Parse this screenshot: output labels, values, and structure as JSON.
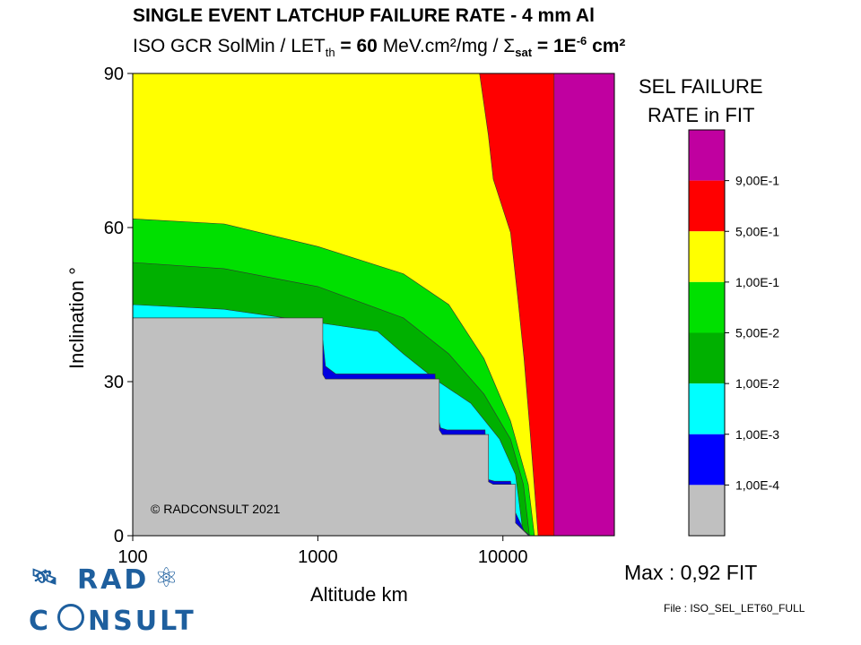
{
  "chart_data": {
    "type": "heatmap",
    "title": "SINGLE EVENT LATCHUP FAILURE RATE - 4 mm Al",
    "subtitle": {
      "p1": "ISO GCR SolMin / LET",
      "sub1": "th",
      "p2": " = ",
      "bold1": "60",
      "p3": " MeV.cm²/mg / ",
      "sigma": "Σ",
      "sub2": "sat",
      "p4": " = 1E",
      "sup": "-6",
      "p5": " cm²"
    },
    "xlabel": "Altitude km",
    "ylabel": "Inclination °",
    "xscale": "log",
    "xlim": [
      100,
      40000
    ],
    "ylim": [
      0,
      90
    ],
    "xticks": [
      "100",
      "1000",
      "10000"
    ],
    "xtick_values": [
      100,
      1000,
      10000
    ],
    "yticks": [
      "0",
      "30",
      "60",
      "90"
    ],
    "ytick_values": [
      0,
      30,
      60,
      90
    ],
    "legend": {
      "title1": "SEL FAILURE",
      "title2": "RATE in FIT",
      "placement": "right",
      "levels": [
        "9,00E-1",
        "5,00E-1",
        "1,00E-1",
        "5,00E-2",
        "1,00E-2",
        "1,00E-3",
        "1,00E-4"
      ],
      "colors": [
        "#c000a0",
        "#ff0000",
        "#ffff00",
        "#00e000",
        "#00b000",
        "#00ffff",
        "#0000ff",
        "#c0c0c0"
      ]
    },
    "regions": [
      {
        "name": "red",
        "color": "#ff0000",
        "right_of_alt": 18900
      },
      {
        "name": "yellow",
        "color": "#ffff00",
        "boundary": [
          [
            100,
            90
          ],
          [
            7480,
            90
          ],
          [
            8340,
            78
          ],
          [
            8870,
            69.4
          ],
          [
            11000,
            59
          ],
          [
            12000,
            46.7
          ],
          [
            13000,
            34.5
          ],
          [
            14000,
            20.6
          ],
          [
            15000,
            6.6
          ],
          [
            15500,
            0
          ]
        ]
      },
      {
        "name": "light-green",
        "color": "#00e000",
        "boundary": [
          [
            100,
            61.7
          ],
          [
            312,
            60.7
          ],
          [
            1000,
            56.3
          ],
          [
            2900,
            51
          ],
          [
            5100,
            45
          ],
          [
            7900,
            34.5
          ],
          [
            11000,
            22.3
          ],
          [
            13700,
            10
          ],
          [
            14800,
            0
          ]
        ]
      },
      {
        "name": "dark-green",
        "color": "#00b000",
        "boundary": [
          [
            100,
            53.2
          ],
          [
            312,
            52
          ],
          [
            1000,
            48.5
          ],
          [
            2900,
            42.4
          ],
          [
            5100,
            35.4
          ],
          [
            7900,
            27.6
          ],
          [
            11000,
            18.8
          ],
          [
            12900,
            10
          ],
          [
            13900,
            0
          ]
        ]
      },
      {
        "name": "cyan",
        "color": "#00ffff",
        "boundary": [
          [
            100,
            45
          ],
          [
            312,
            44.1
          ],
          [
            1000,
            41.5
          ],
          [
            2100,
            39.8
          ],
          [
            2900,
            35.4
          ],
          [
            4400,
            30.2
          ],
          [
            6700,
            25.8
          ],
          [
            9600,
            18.8
          ],
          [
            11700,
            11.9
          ],
          [
            12900,
            0
          ]
        ]
      },
      {
        "name": "blue",
        "color": "#0000e0",
        "boundary": [
          [
            100,
            42.4
          ],
          [
            700,
            42.4
          ],
          [
            900,
            40.5
          ],
          [
            1000,
            40.5
          ],
          [
            1064,
            38
          ],
          [
            1100,
            33
          ],
          [
            1250,
            31.5
          ],
          [
            4300,
            31.5
          ],
          [
            4400,
            24
          ],
          [
            4600,
            21
          ],
          [
            5000,
            20.6
          ],
          [
            8000,
            20.6
          ],
          [
            8200,
            11
          ],
          [
            9000,
            10.6
          ],
          [
            11000,
            10.6
          ],
          [
            11500,
            5
          ],
          [
            13000,
            1
          ],
          [
            14000,
            0
          ]
        ]
      },
      {
        "name": "gray",
        "color": "#c0c0c0",
        "boundary": [
          [
            100,
            42.4
          ],
          [
            1064,
            42.4
          ],
          [
            1064,
            31.4
          ],
          [
            1100,
            30.5
          ],
          [
            4530,
            30.5
          ],
          [
            4530,
            20.6
          ],
          [
            4700,
            19.7
          ],
          [
            8360,
            19.7
          ],
          [
            8360,
            10.5
          ],
          [
            8850,
            10
          ],
          [
            11700,
            10
          ],
          [
            11700,
            2.5
          ],
          [
            13800,
            0
          ]
        ]
      }
    ],
    "max_label": "Max : 0,92 FIT",
    "copyright": "© RADCONSULT 2021",
    "file_label": "File : ISO_SEL_LET60_FULL"
  },
  "logo": {
    "line1": "RAD",
    "line2a": "C",
    "line2b": "NSULT"
  }
}
